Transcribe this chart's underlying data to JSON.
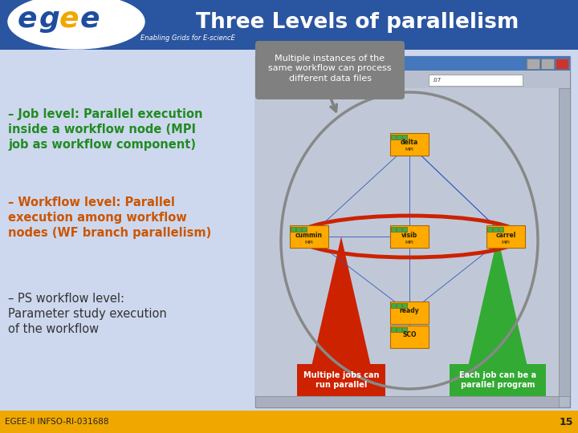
{
  "title": "Three Levels of parallelism",
  "subtitle": "Enabling Grids for E-sciencE",
  "header_bg_color": "#2a55a0",
  "header_text_color": "#ffffff",
  "body_bg_color": "#cdd8ee",
  "footer_bg_color": "#f0a800",
  "footer_left_text": "EGEE-II INFSO-RI-031688",
  "footer_right_text": "15",
  "egee_blue": "#1e4da0",
  "egee_yellow": "#f0a800",
  "bullet1_text": "– Job level: Parallel execution\ninside a workflow node (MPI\njob as workflow component)",
  "bullet1_color": "#228B22",
  "bullet2_text": "– Workflow level: Parallel\nexecution among workflow\nnodes (WF branch parallelism)",
  "bullet2_color": "#cc5500",
  "bullet3_text": "– PS workflow level:\nParameter study execution\nof the workflow",
  "bullet3_color": "#333333",
  "callout_text": "Multiple instances of the\nsame workflow can process\ndifferent data files",
  "callout_bg": "#808080",
  "red_label": "Multiple jobs can\nrun parallel",
  "green_label": "Each job can be a\nparallel program",
  "win_bg": "#c0c8d8",
  "win_titlebar": "#4477bb",
  "node_fill": "#ffaa00",
  "node_edge": "#aa6600",
  "node_green": "#44aa44",
  "line_color": "#3355bb",
  "gray_ellipse_color": "#888888",
  "red_ellipse_color": "#cc2200",
  "red_tri_color": "#cc2200",
  "green_tri_color": "#33aa33"
}
